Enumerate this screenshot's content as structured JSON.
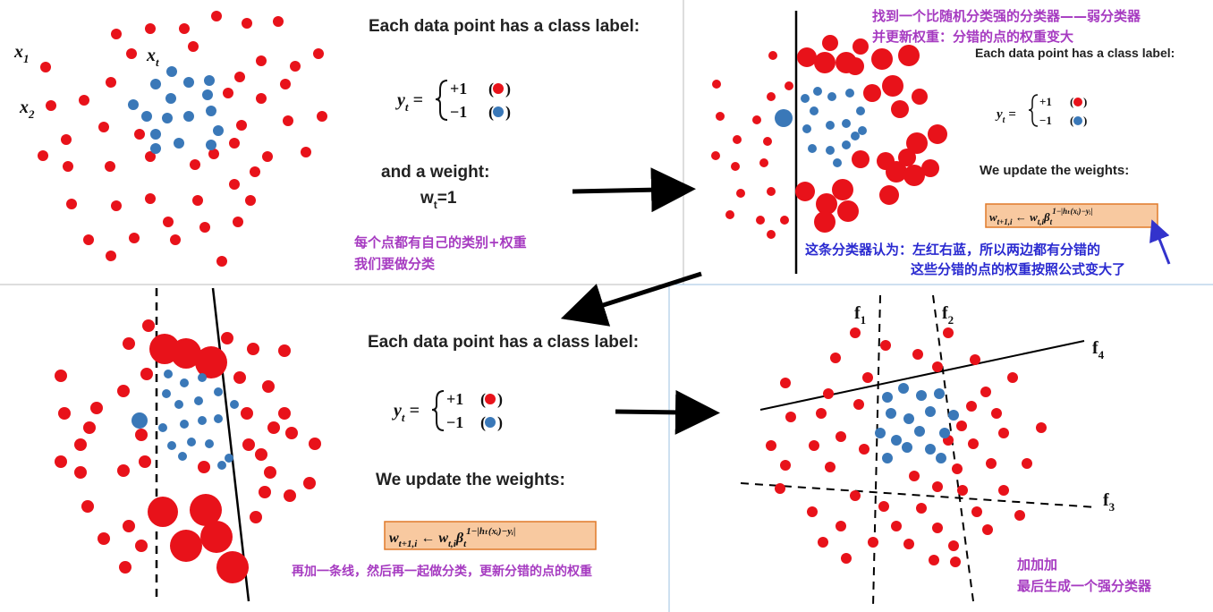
{
  "panel1": {
    "var_x1": "x",
    "var_x1_sub": "1",
    "var_x2": "x",
    "var_x2_sub": "2",
    "var_xt": "x",
    "var_xt_sub": "t",
    "heading": "Each data point has  a class label:",
    "eq_lhs": "y",
    "eq_lhs_sub": "t",
    "eq_pos": "+1",
    "eq_neg": "−1",
    "weight_heading": "and a weight:",
    "weight_eq_w": "w",
    "weight_eq_sub": "t",
    "weight_eq_rest": "=1",
    "note_line1": "每个点都有自己的类别+权重",
    "note_line2": "我们要做分类"
  },
  "panel2": {
    "title_line1": "找到一个比随机分类强的分类器——弱分类器",
    "title_line2": "并更新权重：分错的点的权重变大",
    "heading": "Each data point has  a class label:",
    "eq_lhs": "y",
    "eq_lhs_sub": "t",
    "eq_pos": "+1",
    "eq_neg": "−1",
    "update_heading": "We update the weights:",
    "formula_main": "w",
    "formula_sub1": "t+1,i",
    "formula_arrow": " ← w",
    "formula_sub2": "t,i",
    "formula_beta": "β",
    "formula_beta_sub": "t",
    "formula_exp": "1−|hₜ(xᵢ)−yᵢ|",
    "note_line1": "这条分类器认为：左红右蓝，所以两边都有分错的",
    "note_line2": "这些分错的点的权重按照公式变大了"
  },
  "panel3": {
    "heading": "Each data point has  a class label:",
    "eq_lhs": "y",
    "eq_lhs_sub": "t",
    "eq_pos": "+1",
    "eq_neg": "−1",
    "update_heading": "We update the weights:",
    "formula_main": "w",
    "formula_sub1": "t+1,i",
    "formula_arrow": " ← w",
    "formula_sub2": "t,i",
    "formula_beta": "β",
    "formula_beta_sub": "t",
    "formula_exp": "1−|hₜ(xᵢ)−yᵢ|",
    "note": "再加一条线，然后再一起做分类，更新分错的点的权重"
  },
  "panel4": {
    "f1": "f",
    "f1_sub": "1",
    "f2": "f",
    "f2_sub": "2",
    "f3": "f",
    "f3_sub": "3",
    "f4": "f",
    "f4_sub": "4",
    "note_line1": "加加加",
    "note_line2": "最后生成一个强分类器"
  },
  "colors": {
    "red": "#e8121a",
    "blue": "#3a78b8",
    "purple_text": "#a63bc1",
    "blue_text": "#2a2ad0",
    "formula_bg": "#f8c9a0",
    "formula_border": "#e07a2a"
  }
}
